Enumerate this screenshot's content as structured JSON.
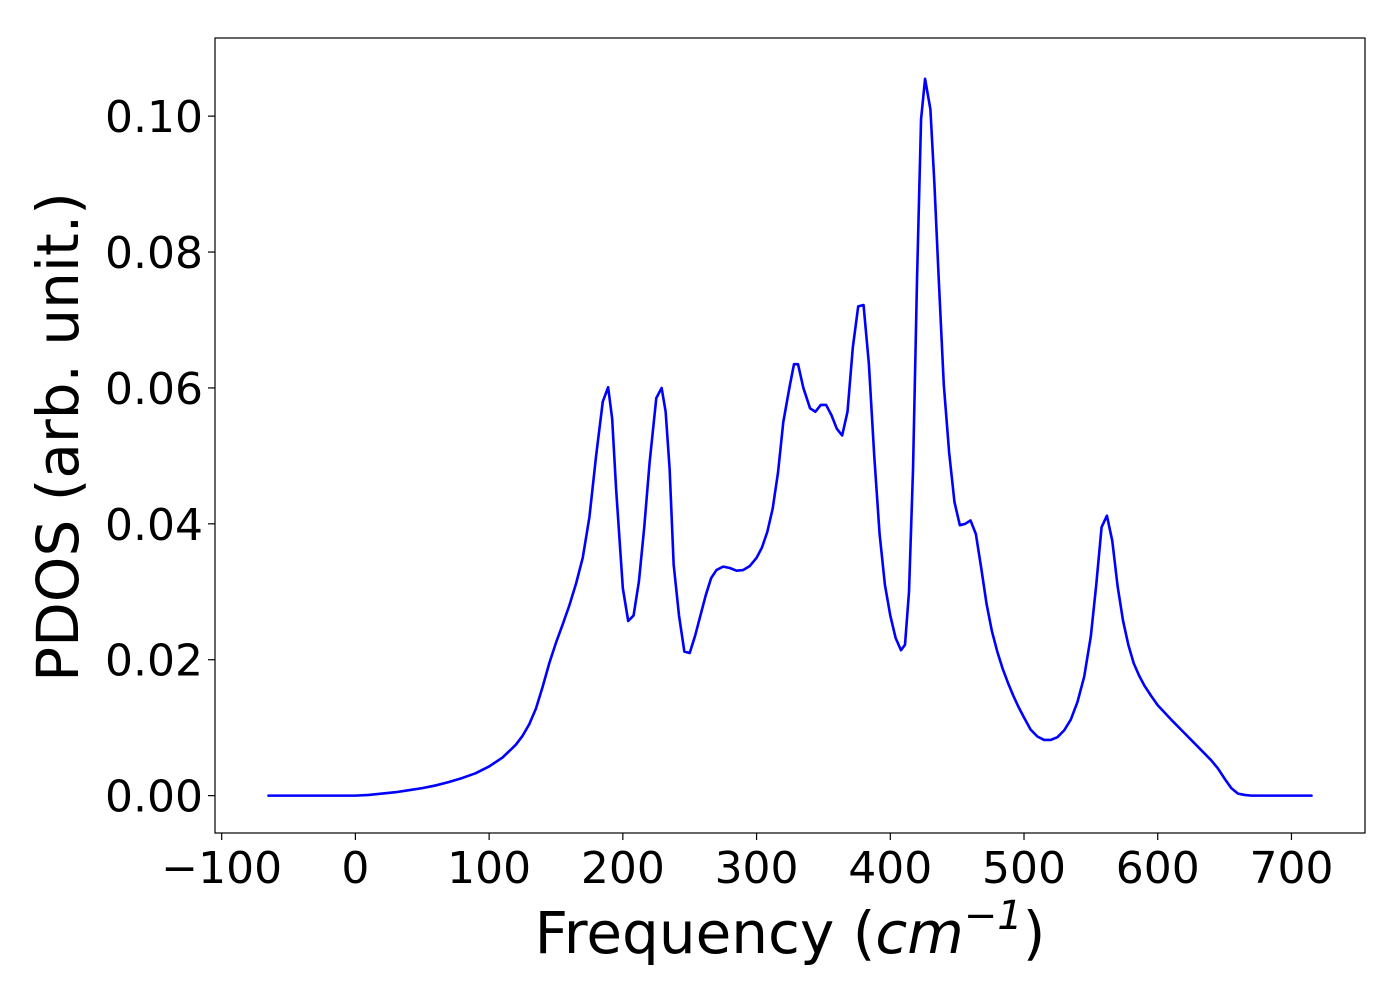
{
  "chart_data": {
    "type": "line",
    "title": "",
    "xlabel": "Frequency",
    "xlabel_unit_base": "cm",
    "xlabel_unit_exp": "−1",
    "ylabel": "PDOS (arb. unit.)",
    "xlim": [
      -105,
      755
    ],
    "ylim": [
      -0.0055,
      0.1115
    ],
    "xticks": [
      -100,
      0,
      100,
      200,
      300,
      400,
      500,
      600,
      700
    ],
    "xtick_labels": [
      "−100",
      "0",
      "100",
      "200",
      "300",
      "400",
      "500",
      "600",
      "700"
    ],
    "yticks": [
      0.0,
      0.02,
      0.04,
      0.06,
      0.08,
      0.1
    ],
    "ytick_labels": [
      "0.00",
      "0.02",
      "0.04",
      "0.06",
      "0.08",
      "0.10"
    ],
    "grid": false,
    "legend": false,
    "series": [
      {
        "color": "#0000ff",
        "x": [
          -65,
          -40,
          -20,
          0,
          10,
          20,
          30,
          40,
          50,
          60,
          70,
          80,
          90,
          100,
          110,
          120,
          125,
          130,
          135,
          140,
          145,
          150,
          155,
          160,
          165,
          170,
          175,
          180,
          185,
          189,
          192,
          195,
          200,
          204,
          208,
          212,
          216,
          220,
          225,
          229,
          232,
          235,
          238,
          242,
          246,
          250,
          254,
          258,
          262,
          266,
          270,
          275,
          280,
          285,
          290,
          295,
          300,
          304,
          308,
          312,
          316,
          320,
          325,
          328,
          331,
          335,
          340,
          344,
          348,
          352,
          356,
          360,
          364,
          368,
          372,
          376,
          380,
          384,
          388,
          392,
          396,
          400,
          404,
          408,
          411,
          414,
          417,
          420,
          423,
          426,
          430,
          433,
          436,
          440,
          444,
          448,
          452,
          456,
          460,
          464,
          468,
          472,
          476,
          480,
          484,
          488,
          492,
          496,
          500,
          505,
          510,
          515,
          520,
          525,
          530,
          535,
          540,
          545,
          550,
          554,
          558,
          562,
          566,
          570,
          574,
          578,
          582,
          586,
          590,
          595,
          600,
          610,
          620,
          630,
          640,
          645,
          650,
          655,
          660,
          665,
          670,
          690,
          715
        ],
        "y": [
          0.0,
          0.0,
          0.0,
          0.0,
          0.0001,
          0.0003,
          0.0005,
          0.0008,
          0.0011,
          0.0015,
          0.002,
          0.0026,
          0.0033,
          0.0043,
          0.0056,
          0.0075,
          0.0088,
          0.0105,
          0.0128,
          0.016,
          0.0195,
          0.0225,
          0.0252,
          0.028,
          0.0312,
          0.035,
          0.041,
          0.05,
          0.058,
          0.0601,
          0.0555,
          0.045,
          0.0305,
          0.0257,
          0.0265,
          0.0315,
          0.0395,
          0.049,
          0.0585,
          0.06,
          0.0565,
          0.048,
          0.034,
          0.0265,
          0.0212,
          0.021,
          0.0235,
          0.0265,
          0.0295,
          0.032,
          0.0332,
          0.0337,
          0.0335,
          0.0331,
          0.0332,
          0.0338,
          0.035,
          0.0365,
          0.0388,
          0.0422,
          0.0475,
          0.055,
          0.0605,
          0.0635,
          0.0635,
          0.06,
          0.057,
          0.0565,
          0.0575,
          0.0575,
          0.056,
          0.054,
          0.053,
          0.0565,
          0.066,
          0.072,
          0.0722,
          0.0635,
          0.05,
          0.0385,
          0.031,
          0.0265,
          0.0232,
          0.0214,
          0.0222,
          0.03,
          0.048,
          0.076,
          0.0995,
          0.1055,
          0.101,
          0.09,
          0.077,
          0.0605,
          0.0505,
          0.0432,
          0.0398,
          0.04,
          0.0405,
          0.0385,
          0.0335,
          0.0282,
          0.0242,
          0.0212,
          0.0187,
          0.0166,
          0.0147,
          0.013,
          0.0115,
          0.0097,
          0.0087,
          0.0082,
          0.0082,
          0.0086,
          0.0096,
          0.0112,
          0.0138,
          0.0175,
          0.0235,
          0.031,
          0.0395,
          0.0412,
          0.0375,
          0.0308,
          0.0258,
          0.0222,
          0.0195,
          0.0177,
          0.0162,
          0.0147,
          0.0133,
          0.0112,
          0.0092,
          0.0072,
          0.0052,
          0.004,
          0.0025,
          0.0011,
          0.0003,
          0.0001,
          0.0,
          0.0,
          0.0
        ]
      }
    ]
  }
}
